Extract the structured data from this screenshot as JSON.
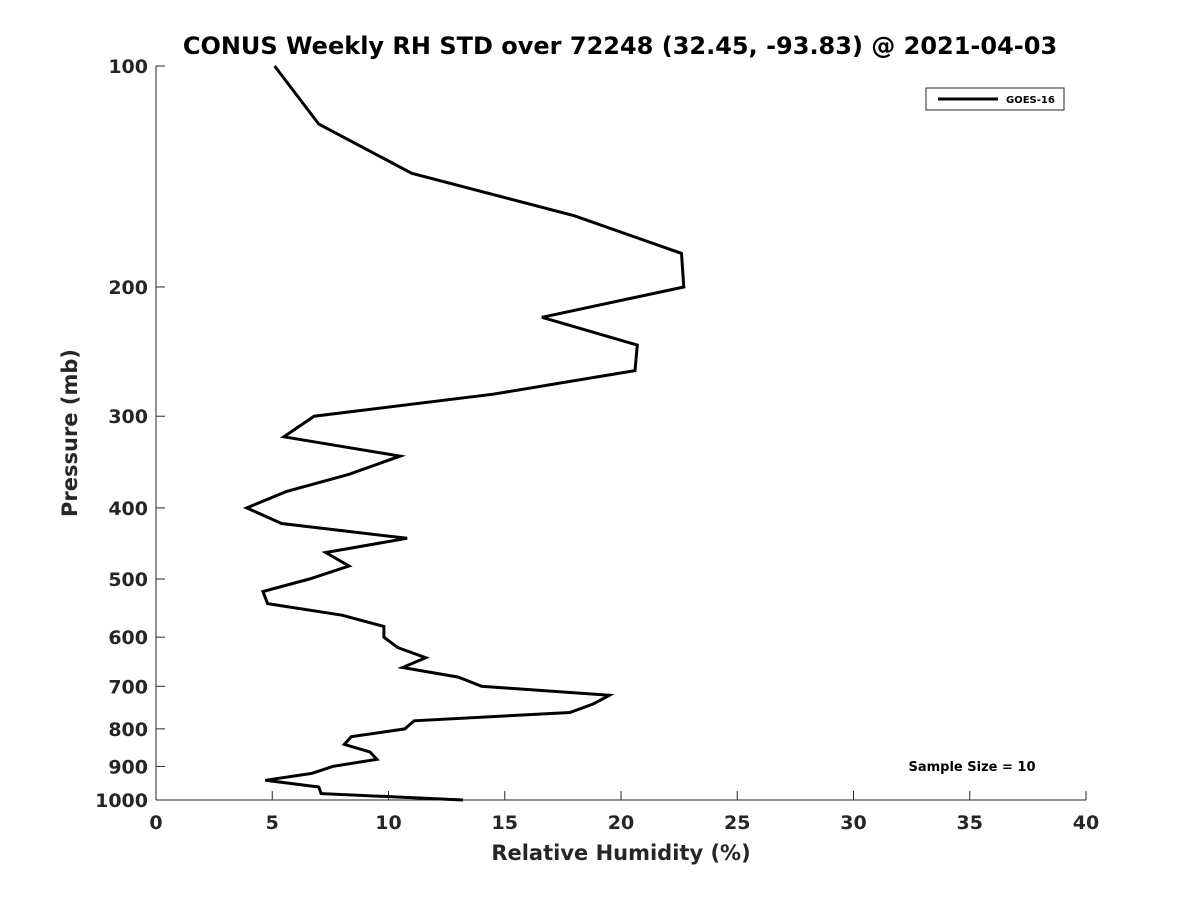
{
  "chart_data": {
    "type": "line",
    "title": "CONUS Weekly RH STD over 72248 (32.45, -93.83) @ 2021-04-03",
    "xlabel": "Relative Humidity (%)",
    "ylabel": "Pressure (mb)",
    "xlim": [
      0,
      40
    ],
    "ylim": [
      1000,
      100
    ],
    "y_scale": "log",
    "y_reversed": true,
    "x_ticks": [
      0,
      5,
      10,
      15,
      20,
      25,
      30,
      35,
      40
    ],
    "y_ticks": [
      100,
      200,
      300,
      400,
      500,
      600,
      700,
      800,
      900,
      1000
    ],
    "grid": false,
    "legend_position": "top-right",
    "annotation": "Sample Size = 10",
    "series": [
      {
        "name": "GOES-16",
        "color": "#000000",
        "points": [
          [
            5.1,
            100
          ],
          [
            7.0,
            120
          ],
          [
            11.0,
            140
          ],
          [
            18.0,
            160
          ],
          [
            22.6,
            180
          ],
          [
            22.7,
            200
          ],
          [
            16.6,
            220
          ],
          [
            20.7,
            240
          ],
          [
            20.6,
            260
          ],
          [
            14.5,
            280
          ],
          [
            6.8,
            300
          ],
          [
            5.5,
            320
          ],
          [
            10.5,
            340
          ],
          [
            8.3,
            360
          ],
          [
            5.6,
            380
          ],
          [
            3.9,
            400
          ],
          [
            5.4,
            420
          ],
          [
            10.8,
            440
          ],
          [
            7.3,
            460
          ],
          [
            8.3,
            480
          ],
          [
            6.6,
            500
          ],
          [
            4.6,
            520
          ],
          [
            4.8,
            540
          ],
          [
            8.0,
            560
          ],
          [
            9.8,
            580
          ],
          [
            9.8,
            600
          ],
          [
            10.4,
            620
          ],
          [
            11.6,
            640
          ],
          [
            10.6,
            660
          ],
          [
            13.0,
            680
          ],
          [
            14.0,
            700
          ],
          [
            19.5,
            720
          ],
          [
            18.8,
            740
          ],
          [
            17.8,
            760
          ],
          [
            11.1,
            780
          ],
          [
            10.7,
            800
          ],
          [
            8.4,
            820
          ],
          [
            8.1,
            840
          ],
          [
            9.2,
            860
          ],
          [
            9.5,
            880
          ],
          [
            7.6,
            900
          ],
          [
            6.7,
            920
          ],
          [
            4.7,
            940
          ],
          [
            7.0,
            960
          ],
          [
            7.1,
            980
          ],
          [
            13.2,
            1000
          ]
        ]
      }
    ]
  }
}
